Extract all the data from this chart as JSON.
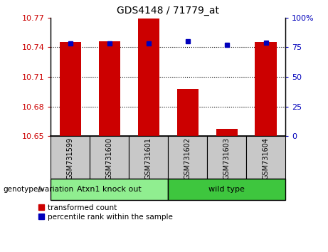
{
  "title": "GDS4148 / 71779_at",
  "samples": [
    "GSM731599",
    "GSM731600",
    "GSM731601",
    "GSM731602",
    "GSM731603",
    "GSM731604"
  ],
  "red_values": [
    10.745,
    10.746,
    10.769,
    10.698,
    10.657,
    10.745
  ],
  "blue_values": [
    78,
    78,
    78,
    80,
    77,
    79
  ],
  "ylim_left": [
    10.65,
    10.77
  ],
  "ylim_right": [
    0,
    100
  ],
  "yticks_left": [
    10.65,
    10.68,
    10.71,
    10.74,
    10.77
  ],
  "yticks_right": [
    0,
    25,
    50,
    75,
    100
  ],
  "ytick_labels_left": [
    "10.65",
    "10.68",
    "10.71",
    "10.74",
    "10.77"
  ],
  "ytick_labels_right": [
    "0",
    "25",
    "50",
    "75",
    "100%"
  ],
  "hlines": [
    10.68,
    10.71,
    10.74
  ],
  "group1_label": "Atxn1 knock out",
  "group2_label": "wild type",
  "group1_color": "#90EE90",
  "group2_color": "#3EC63E",
  "bar_color": "#CC0000",
  "dot_color": "#0000BB",
  "legend_red_label": "transformed count",
  "legend_blue_label": "percentile rank within the sample",
  "genotype_label": "genotype/variation",
  "bar_width": 0.55,
  "bar_bottom": 10.65,
  "figure_bg": "#FFFFFF",
  "axis_bg": "#FFFFFF",
  "tick_label_color_left": "#CC0000",
  "tick_label_color_right": "#0000BB",
  "label_box_color": "#C8C8C8",
  "dot_size": 5
}
